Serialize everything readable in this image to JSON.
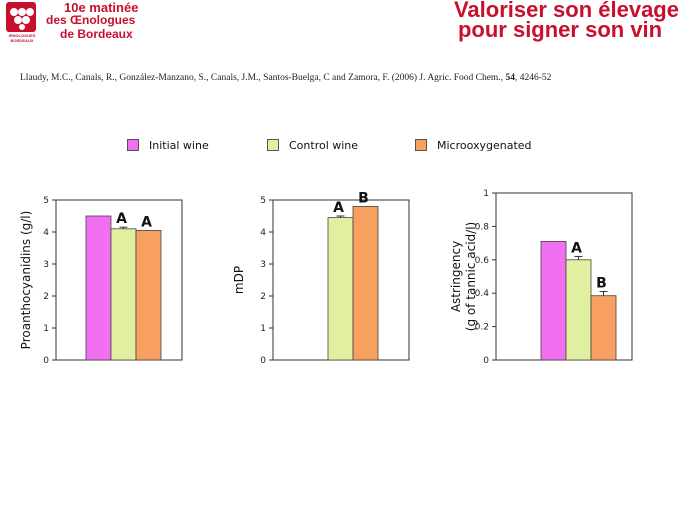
{
  "header": {
    "logo_line1": "10e matinée",
    "logo_line2": "des Œnologues",
    "logo_line3": "de Bordeaux",
    "logo_badge_text": "ŒNOLOGUES BORDEAUX",
    "title_line1": "Valoriser son élevage",
    "title_line2": "pour signer son vin",
    "title_color": "#c8102e"
  },
  "citation": {
    "authors": "Llaudy, M.C., Canals, R., González-Manzano, S., Canals, J.M., Santos-Buelga, C  and Zamora, F. (2006) J. Agric. Food Chem., ",
    "volume": "54",
    "pages": ", 4246-52"
  },
  "legend": [
    {
      "name": "Initial wine",
      "color": "#f070f0"
    },
    {
      "name": "Control wine",
      "color": "#e0f0a0"
    },
    {
      "name": "Microoxygenated",
      "color": "#f8a060"
    }
  ],
  "chart_data": [
    {
      "type": "bar",
      "ylabel": "Proanthocyanidins (g/l)",
      "ylim": [
        0,
        5
      ],
      "yticks": [
        0,
        1,
        2,
        3,
        4,
        5
      ],
      "categories": [
        "Initial wine",
        "Control wine",
        "Microoxygenated"
      ],
      "values": [
        4.5,
        4.1,
        4.05
      ],
      "errors": [
        0,
        0.05,
        0
      ],
      "significance": [
        "",
        "A",
        "A"
      ]
    },
    {
      "type": "bar",
      "ylabel": "mDP",
      "ylim": [
        0,
        5
      ],
      "yticks": [
        0,
        1,
        2,
        3,
        4,
        5
      ],
      "categories": [
        "Initial wine",
        "Control wine",
        "Microoxygenated"
      ],
      "values": [
        null,
        4.45,
        4.8
      ],
      "errors": [
        0,
        0.05,
        0
      ],
      "significance": [
        "",
        "A",
        "B"
      ]
    },
    {
      "type": "bar",
      "ylabel": "Astringency (g of tannic acid/l)",
      "ylabel_line1": "Astringency",
      "ylabel_line2": "(g of tannic acid/l)",
      "ylim": [
        0,
        1
      ],
      "yticks": [
        0,
        0.2,
        0.4,
        0.6,
        0.8,
        1
      ],
      "categories": [
        "Initial wine",
        "Control wine",
        "Microoxygenated"
      ],
      "values": [
        0.71,
        0.6,
        0.385
      ],
      "errors": [
        0,
        0.02,
        0.025
      ],
      "significance": [
        "",
        "A",
        "B"
      ]
    }
  ]
}
